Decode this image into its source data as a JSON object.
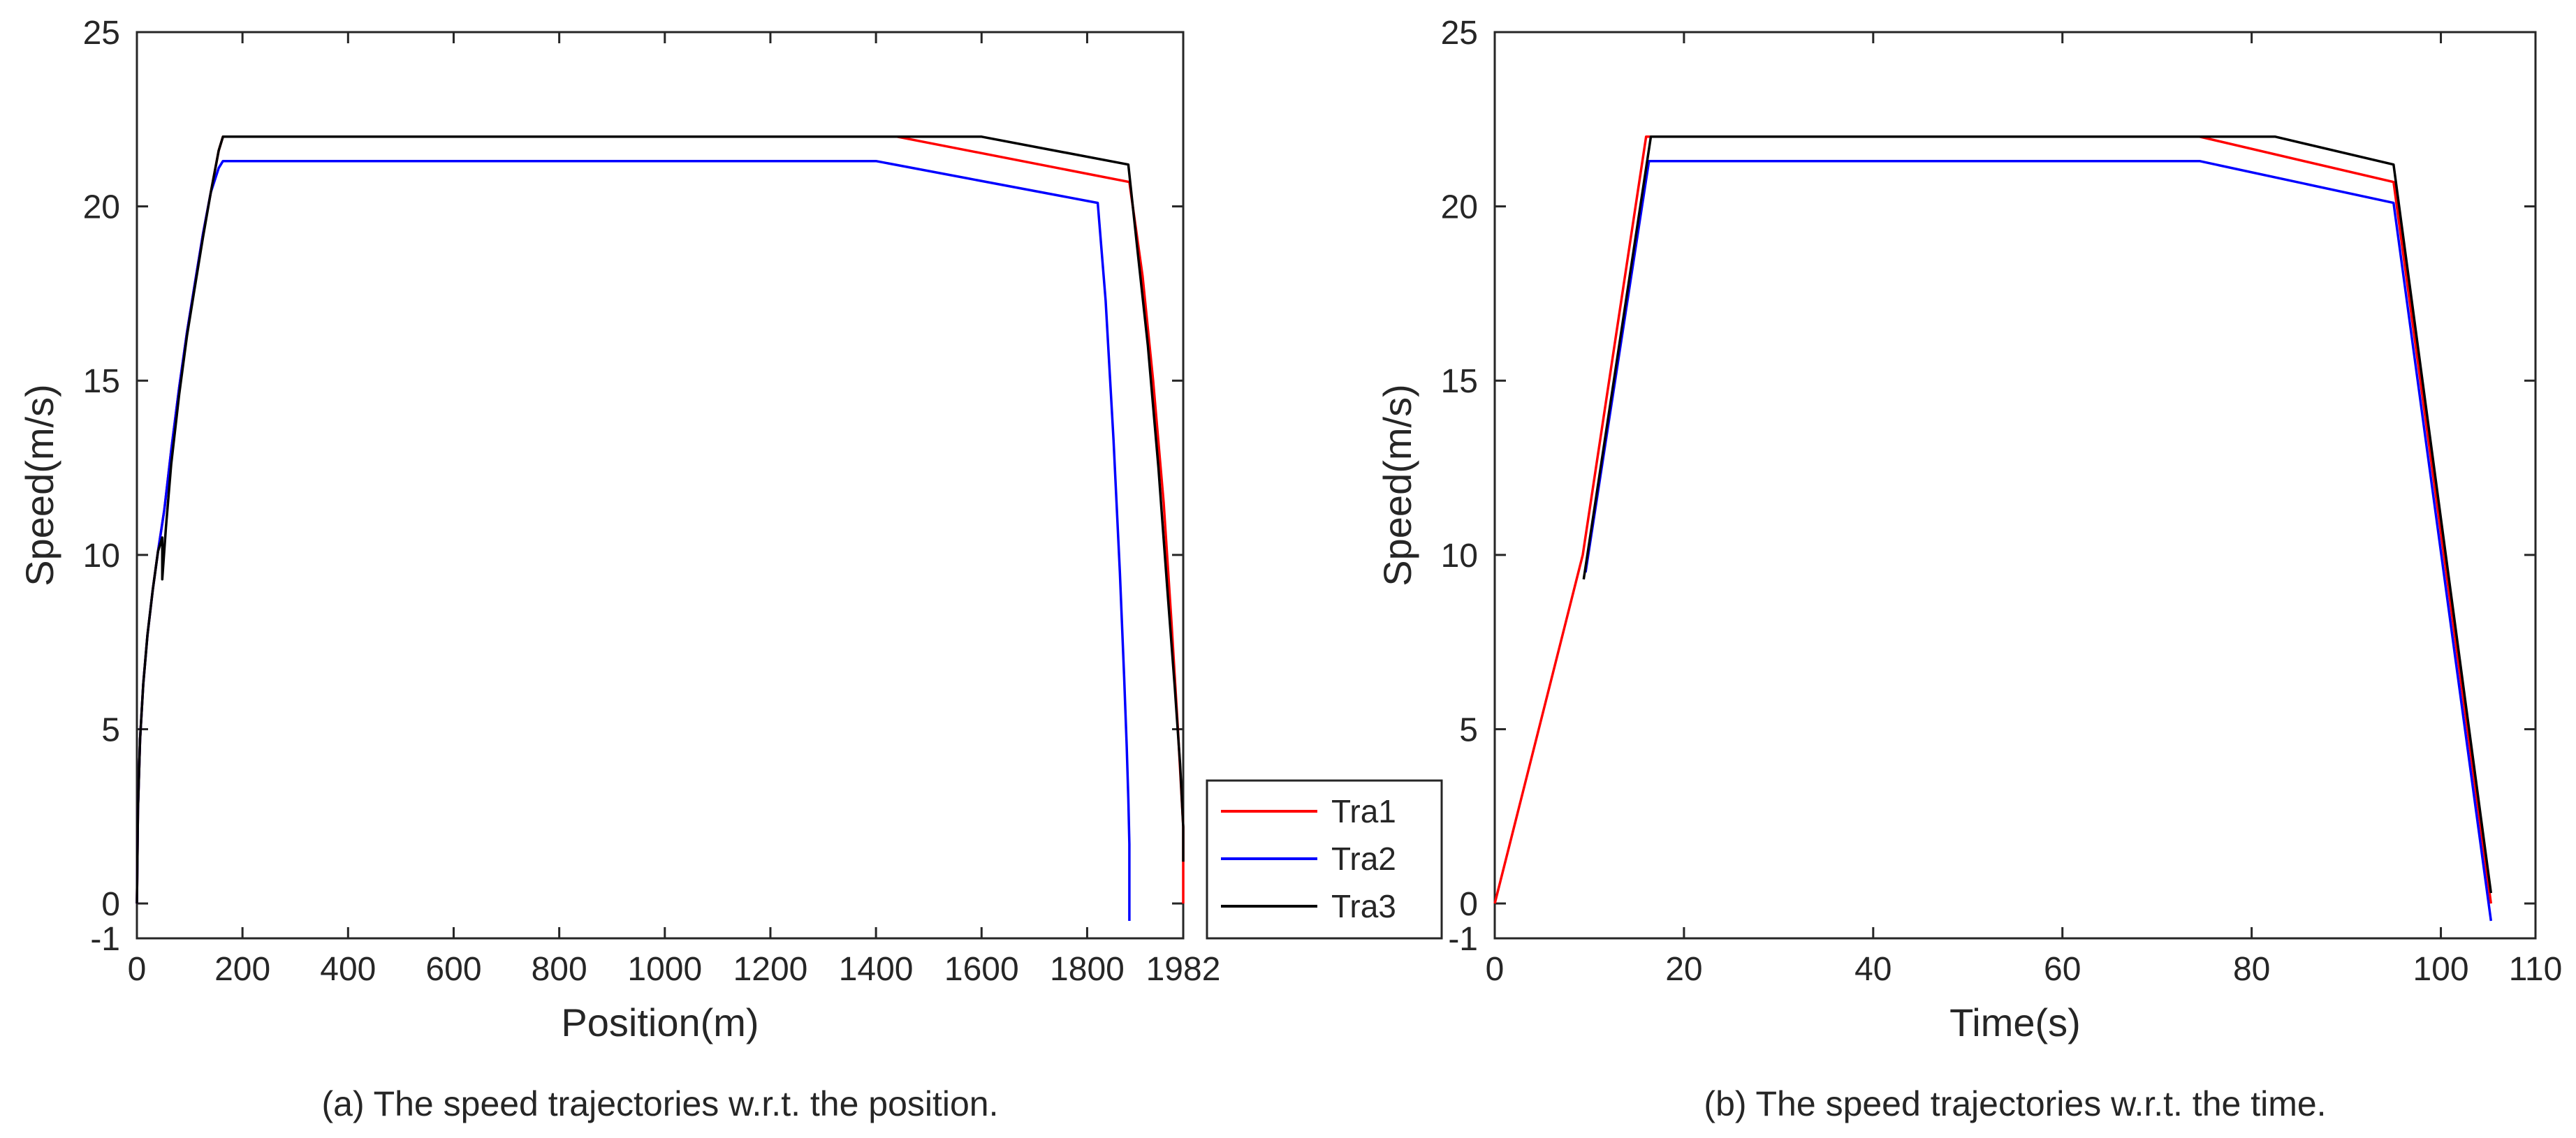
{
  "chart_data": [
    {
      "type": "line",
      "caption": "(a) The speed trajectories w.r.t. the position.",
      "xlabel": "Position(m)",
      "ylabel": "Speed(m/s)",
      "xlim": [
        0,
        1982
      ],
      "ylim": [
        -1,
        25
      ],
      "xticks": [
        0,
        200,
        400,
        600,
        800,
        1000,
        1200,
        1400,
        1600,
        1800,
        1982
      ],
      "yticks": [
        -1,
        0,
        5,
        10,
        15,
        20,
        25
      ],
      "legend": {
        "placement": "bottom-right-outside",
        "entries": [
          "Tra1",
          "Tra2",
          "Tra3"
        ]
      },
      "series": [
        {
          "name": "Tra1",
          "color": "#ff0000",
          "x": [
            0,
            2,
            6,
            12,
            20,
            30,
            40,
            52,
            65,
            80,
            95,
            110,
            125,
            140,
            155,
            163,
            1440,
            1880,
            1905,
            1925,
            1945,
            1960,
            1972,
            1982,
            1982
          ],
          "y": [
            0,
            2.7,
            4.7,
            6.3,
            7.7,
            9.0,
            10.1,
            11.3,
            13.0,
            14.8,
            16.4,
            17.8,
            19.2,
            20.4,
            21.6,
            22.0,
            22.0,
            20.7,
            18.0,
            15.0,
            11.5,
            8.0,
            5.0,
            2.2,
            0
          ]
        },
        {
          "name": "Tra2",
          "color": "#0000ff",
          "x": [
            0,
            2,
            6,
            12,
            20,
            30,
            40,
            52,
            65,
            80,
            95,
            110,
            125,
            140,
            155,
            163,
            1400,
            1820,
            1835,
            1850,
            1862,
            1870,
            1875,
            1878,
            1880,
            1880
          ],
          "y": [
            0,
            2.7,
            4.7,
            6.3,
            7.7,
            9.0,
            10.1,
            11.3,
            13.0,
            14.8,
            16.4,
            17.8,
            19.2,
            20.4,
            21.1,
            21.3,
            21.3,
            20.1,
            17.3,
            13.3,
            9.5,
            6.5,
            4.5,
            3.0,
            1.7,
            -0.5
          ]
        },
        {
          "name": "Tra3",
          "color": "#000000",
          "x": [
            0,
            2,
            6,
            12,
            20,
            30,
            40,
            48,
            48,
            55,
            65,
            80,
            95,
            110,
            125,
            140,
            155,
            163,
            1600,
            1878,
            1895,
            1915,
            1935,
            1952,
            1966,
            1976,
            1982,
            1982
          ],
          "y": [
            0,
            2.7,
            4.7,
            6.3,
            7.7,
            9.0,
            10.1,
            10.5,
            9.3,
            10.8,
            12.6,
            14.6,
            16.3,
            17.7,
            19.1,
            20.4,
            21.6,
            22.0,
            22.0,
            21.2,
            18.8,
            16.0,
            12.5,
            9.0,
            6.2,
            4.0,
            2.2,
            1.2
          ]
        }
      ]
    },
    {
      "type": "line",
      "caption": "(b) The speed trajectories w.r.t. the time.",
      "xlabel": "Time(s)",
      "ylabel": "Speed(m/s)",
      "xlim": [
        0,
        110
      ],
      "ylim": [
        -1,
        25
      ],
      "xticks": [
        0,
        20,
        40,
        60,
        80,
        100,
        110
      ],
      "yticks": [
        -1,
        0,
        5,
        10,
        15,
        20,
        25
      ],
      "series": [
        {
          "name": "Tra1",
          "color": "#ff0000",
          "x": [
            0,
            9.3,
            16.0,
            74.5,
            95.0,
            105.3
          ],
          "y": [
            0,
            10.0,
            22.0,
            22.0,
            20.7,
            0
          ]
        },
        {
          "name": "Tra2",
          "color": "#0000ff",
          "x": [
            9.6,
            16.3,
            74.5,
            95.0,
            105.3
          ],
          "y": [
            9.5,
            21.3,
            21.3,
            20.1,
            -0.5
          ]
        },
        {
          "name": "Tra3",
          "color": "#000000",
          "x": [
            9.4,
            16.5,
            82.5,
            95.0,
            105.3
          ],
          "y": [
            9.3,
            22.0,
            22.0,
            21.2,
            0.3
          ]
        }
      ]
    }
  ]
}
